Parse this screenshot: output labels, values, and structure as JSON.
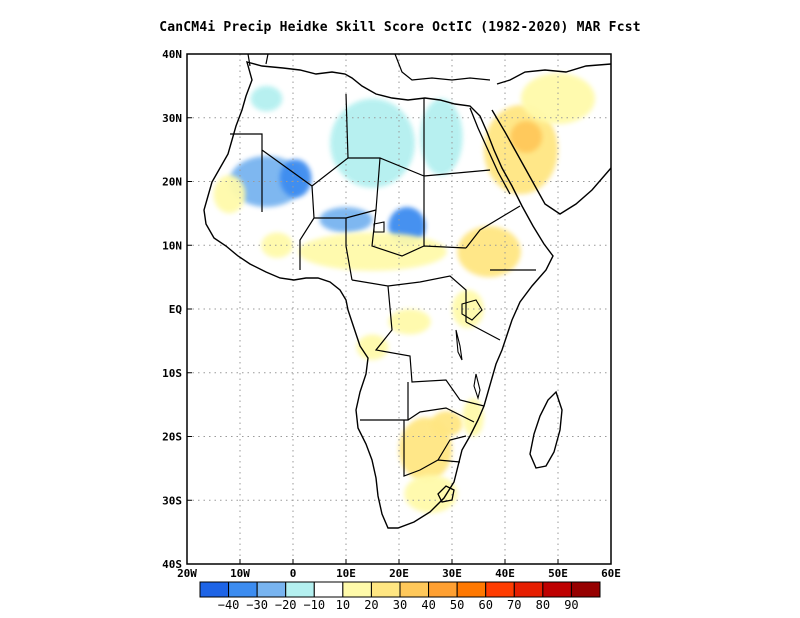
{
  "title": "CanCM4i Precip Heidke Skill Score OctIC (1982-2020) MAR Fcst",
  "map": {
    "lon_range": [
      -20,
      60
    ],
    "lat_range": [
      -40,
      40
    ],
    "lon_ticks": [
      {
        "value": -20,
        "label": "20W"
      },
      {
        "value": -10,
        "label": "10W"
      },
      {
        "value": 0,
        "label": "0"
      },
      {
        "value": 10,
        "label": "10E"
      },
      {
        "value": 20,
        "label": "20E"
      },
      {
        "value": 30,
        "label": "30E"
      },
      {
        "value": 40,
        "label": "40E"
      },
      {
        "value": 50,
        "label": "50E"
      },
      {
        "value": 60,
        "label": "60E"
      }
    ],
    "lat_ticks": [
      {
        "value": 40,
        "label": "40N"
      },
      {
        "value": 30,
        "label": "30N"
      },
      {
        "value": 20,
        "label": "20N"
      },
      {
        "value": 10,
        "label": "10N"
      },
      {
        "value": 0,
        "label": "EQ"
      },
      {
        "value": -10,
        "label": "10S"
      },
      {
        "value": -20,
        "label": "20S"
      },
      {
        "value": -30,
        "label": "30S"
      },
      {
        "value": -40,
        "label": "40S"
      }
    ],
    "gridlines": "dotted",
    "coastline_color": "#000000",
    "skill_regions": [
      {
        "name": "sahara-west-negative",
        "lon": -5,
        "lat": 20,
        "rx": 7,
        "ry": 4,
        "value": -25
      },
      {
        "name": "mali-negative",
        "lon": 0.5,
        "lat": 20.5,
        "rx": 3,
        "ry": 3,
        "value": -35
      },
      {
        "name": "libya-negative",
        "lon": 15,
        "lat": 26,
        "rx": 8,
        "ry": 7,
        "value": -15
      },
      {
        "name": "chad-negative",
        "lon": 21.5,
        "lat": 13,
        "rx": 3.5,
        "ry": 3,
        "value": -40
      },
      {
        "name": "niger-negative",
        "lon": 10,
        "lat": 14,
        "rx": 5,
        "ry": 2,
        "value": -30
      },
      {
        "name": "morocco-negative",
        "lon": -5,
        "lat": 33,
        "rx": 3,
        "ry": 2,
        "value": -15
      },
      {
        "name": "egypt-negative",
        "lon": 28,
        "lat": 27,
        "rx": 4,
        "ry": 6,
        "value": -15
      },
      {
        "name": "arabia-positive",
        "lon": 43,
        "lat": 25,
        "rx": 7,
        "ry": 7,
        "value": 25
      },
      {
        "name": "arabia-core-positive",
        "lon": 44,
        "lat": 27,
        "rx": 3,
        "ry": 2.5,
        "value": 35
      },
      {
        "name": "iran-positive",
        "lon": 50,
        "lat": 33,
        "rx": 7,
        "ry": 4,
        "value": 15
      },
      {
        "name": "sahel-positive",
        "lon": 15,
        "lat": 9,
        "rx": 14,
        "ry": 3,
        "value": 15
      },
      {
        "name": "ethiopia-positive",
        "lon": 37,
        "lat": 9,
        "rx": 6,
        "ry": 4,
        "value": 20
      },
      {
        "name": "kenya-positive",
        "lon": 33,
        "lat": 0,
        "rx": 3,
        "ry": 3,
        "value": 15
      },
      {
        "name": "congo-positive",
        "lon": 22,
        "lat": -2,
        "rx": 4,
        "ry": 2,
        "value": 15
      },
      {
        "name": "angola-positive",
        "lon": 15,
        "lat": -6,
        "rx": 3,
        "ry": 2,
        "value": 15
      },
      {
        "name": "southern-africa-positive",
        "lon": 25,
        "lat": -22,
        "rx": 5,
        "ry": 5,
        "value": 20
      },
      {
        "name": "zimbabwe-positive",
        "lon": 29,
        "lat": -18,
        "rx": 3,
        "ry": 2,
        "value": 25
      },
      {
        "name": "south-africa-positive",
        "lon": 26,
        "lat": -29,
        "rx": 5,
        "ry": 3,
        "value": 15
      },
      {
        "name": "mozambique-positive",
        "lon": 34,
        "lat": -17,
        "rx": 2,
        "ry": 3,
        "value": 15
      },
      {
        "name": "west-africa-coast-positive",
        "lon": -3,
        "lat": 10,
        "rx": 3,
        "ry": 2,
        "value": 15
      },
      {
        "name": "mauritania-positive",
        "lon": -12,
        "lat": 18,
        "rx": 3,
        "ry": 3,
        "value": 15
      }
    ]
  },
  "colorbar": {
    "colors": [
      "#1e64e6",
      "#3c8cf0",
      "#78b4f0",
      "#b4f0f0",
      "#ffffff",
      "#fffaaa",
      "#ffe682",
      "#ffc85a",
      "#ffa032",
      "#ff7800",
      "#ff3c00",
      "#e61e00",
      "#be0000",
      "#960000"
    ],
    "labels": [
      "-40",
      "-30",
      "-20",
      "-10",
      "10",
      "20",
      "30",
      "40",
      "50",
      "60",
      "70",
      "80",
      "90"
    ]
  }
}
